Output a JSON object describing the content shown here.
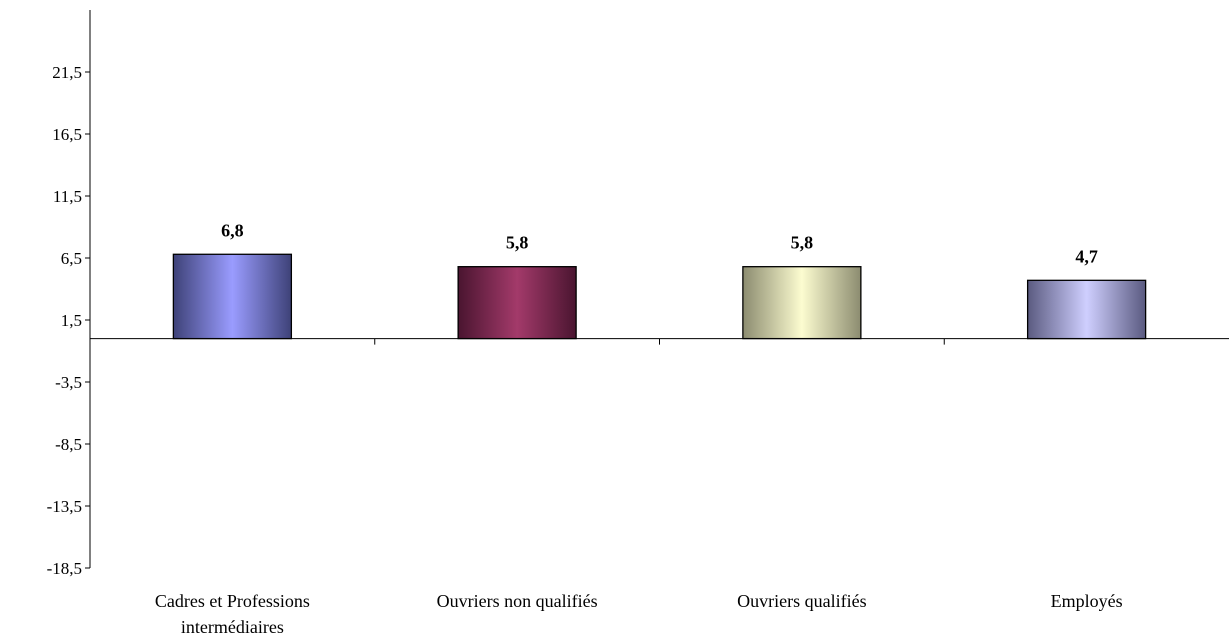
{
  "chart_data": {
    "type": "bar",
    "title": "",
    "xlabel": "",
    "ylabel": "",
    "categories": [
      [
        "Cadres et Professions",
        "intermédiaires"
      ],
      [
        "Ouvriers non qualifiés"
      ],
      [
        "Ouvriers qualifiés"
      ],
      [
        "Employés"
      ]
    ],
    "values": [
      6.8,
      5.8,
      5.8,
      4.7
    ],
    "value_labels": [
      "6,8",
      "5,8",
      "5,8",
      "4,7"
    ],
    "ylim": [
      -18.5,
      26.5
    ],
    "yticks": [
      21.5,
      16.5,
      11.5,
      6.5,
      1.5,
      -3.5,
      -8.5,
      -13.5,
      -18.5
    ],
    "ytick_labels": [
      "21,5",
      "16,5",
      "11,5",
      "6,5",
      "1,5",
      "-3,5",
      "-8,5",
      "-13,5",
      "-18,5"
    ],
    "baseline": 0,
    "grid": false,
    "bar_colors": [
      {
        "edge": "#3e4278",
        "center": "#9a9cff"
      },
      {
        "edge": "#4a1530",
        "center": "#a33a6a"
      },
      {
        "edge": "#8c8c70",
        "center": "#fcfcd0"
      },
      {
        "edge": "#5a5a80",
        "center": "#cfcfff"
      }
    ]
  }
}
